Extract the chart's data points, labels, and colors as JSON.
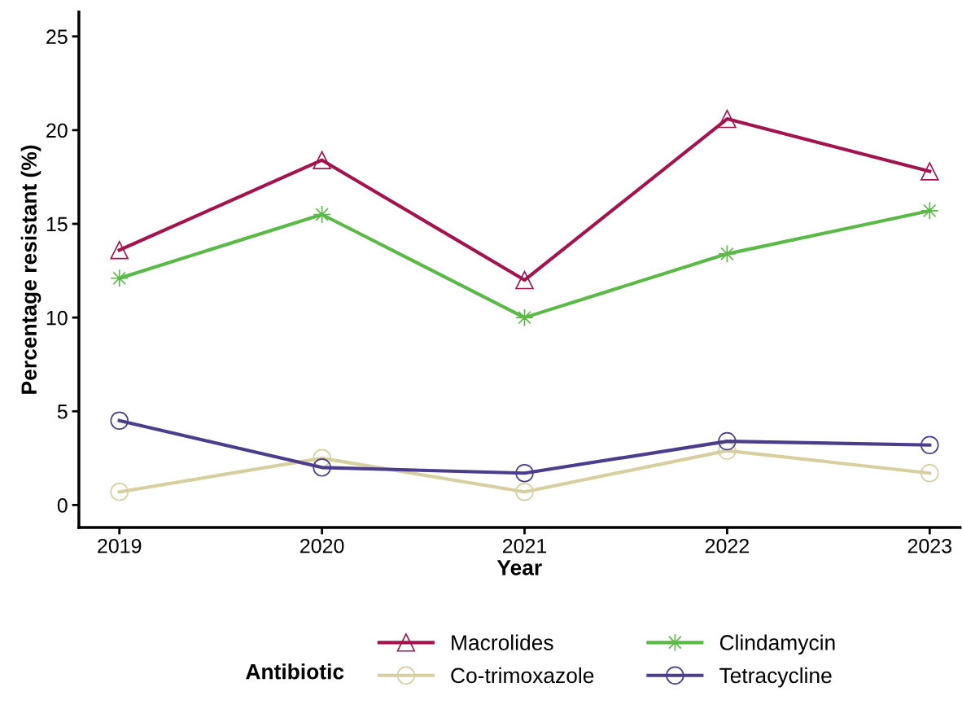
{
  "chart_data": {
    "type": "line",
    "xlabel": "Year",
    "ylabel": "Percentage resistant (%)",
    "legend_title": "Antibiotic",
    "x": [
      2019,
      2020,
      2021,
      2022,
      2023
    ],
    "series": [
      {
        "name": "Macrolides",
        "color": "#a3144f",
        "marker": "triangle",
        "values": [
          13.6,
          18.4,
          12.0,
          20.6,
          17.8
        ]
      },
      {
        "name": "Clindamycin",
        "color": "#5bb947",
        "marker": "star",
        "values": [
          12.1,
          15.5,
          10.0,
          13.4,
          15.7
        ]
      },
      {
        "name": "Co-trimoxazole",
        "color": "#d8cfa0",
        "marker": "circle",
        "values": [
          0.7,
          2.5,
          0.7,
          2.9,
          1.7
        ]
      },
      {
        "name": "Tetracycline",
        "color": "#4b3d8c",
        "marker": "circle",
        "values": [
          4.5,
          2.0,
          1.7,
          3.4,
          3.2
        ]
      }
    ],
    "xlim": [
      2018.8,
      2023.15
    ],
    "xticks": [
      2019,
      2020,
      2021,
      2022,
      2023
    ],
    "ylim": [
      -1.2,
      26.3
    ],
    "yticks": [
      0,
      5,
      10,
      15,
      20,
      25
    ],
    "grid": false,
    "legend": "bottom",
    "line_style": "solid"
  }
}
